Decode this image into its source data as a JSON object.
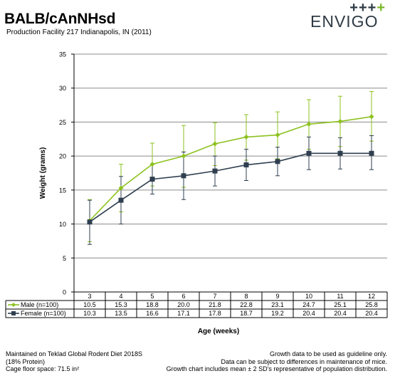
{
  "title": "BALB/cAnNHsd",
  "subtitle": "Production Facility 217 Indianapolis, IN (2011)",
  "logo": {
    "text": "ENVIGO",
    "plus_dark": "+++",
    "plus_green": "+"
  },
  "colors": {
    "male": "#8cc21f",
    "female": "#2f3f4f",
    "grid": "#8c8c8c",
    "logo_dark": "#2f3b45",
    "logo_green": "#7ab82a"
  },
  "footer": {
    "left": [
      "Maintained on Teklad Global Rodent Diet 2018S",
      "(18% Protein)",
      "Cage floor space: 71.5 in²"
    ],
    "right": [
      "Growth data to be used as guideline only.",
      "Data can be subject to differences in maintenance of mice.",
      "Growth chart includes mean ± 2 SD's representative of population distribution."
    ]
  },
  "chart_data": {
    "type": "line",
    "title": "",
    "xlabel": "Age (weeks)",
    "ylabel": "Weight (grams)",
    "ylim": [
      0,
      35
    ],
    "yticks": [
      "0",
      "5",
      "10",
      "15",
      "20",
      "25",
      "30",
      "35"
    ],
    "grid": true,
    "categories": [
      "3",
      "4",
      "5",
      "6",
      "7",
      "8",
      "9",
      "10",
      "11",
      "12"
    ],
    "series": [
      {
        "name": "Male (n=100)",
        "color": "#8cc21f",
        "marker": "diamond",
        "values": [
          10.5,
          15.3,
          18.8,
          20.0,
          21.8,
          22.8,
          23.1,
          24.7,
          25.1,
          25.8
        ],
        "labels": [
          "10.5",
          "15.3",
          "18.8",
          "20.0",
          "21.8",
          "22.8",
          "23.1",
          "24.7",
          "25.1",
          "25.8"
        ],
        "err_low": [
          7.4,
          11.8,
          15.6,
          15.4,
          18.6,
          19.4,
          19.6,
          21.0,
          21.4,
          22.2
        ],
        "err_high": [
          13.6,
          18.8,
          21.9,
          24.5,
          24.9,
          26.1,
          26.5,
          28.3,
          28.8,
          29.5
        ]
      },
      {
        "name": "Female (n=100)",
        "color": "#2f3f4f",
        "marker": "square",
        "values": [
          10.3,
          13.5,
          16.6,
          17.1,
          17.8,
          18.7,
          19.2,
          20.4,
          20.4,
          20.4
        ],
        "labels": [
          "10.3",
          "13.5",
          "16.6",
          "17.1",
          "17.8",
          "18.7",
          "19.2",
          "20.4",
          "20.4",
          "20.4"
        ],
        "err_low": [
          7.0,
          10.0,
          14.4,
          13.6,
          15.6,
          16.4,
          17.1,
          18.0,
          18.1,
          18.0
        ],
        "err_high": [
          13.5,
          17.0,
          18.8,
          20.6,
          20.0,
          21.0,
          21.3,
          22.8,
          22.7,
          23.0
        ]
      }
    ]
  }
}
